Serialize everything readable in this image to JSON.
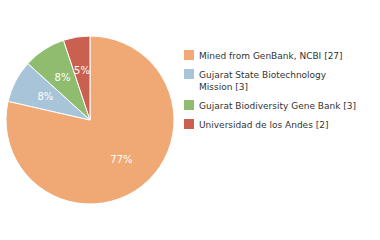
{
  "chart_data": {
    "type": "pie",
    "categories": [
      "Mined from GenBank, NCBI [27]",
      "Gujarat State Biotechnology\nMission [3]",
      "Gujarat Biodiversity Gene Bank [3]",
      "Universidad de los Andes [2]"
    ],
    "values": [
      77,
      8,
      8,
      5
    ],
    "value_labels": [
      "77%",
      "8%",
      "8%",
      "5%"
    ],
    "colors": [
      "#f0a875",
      "#a8c4d8",
      "#8fbc6f",
      "#c96050"
    ],
    "data_labels": true,
    "legend": "right"
  }
}
